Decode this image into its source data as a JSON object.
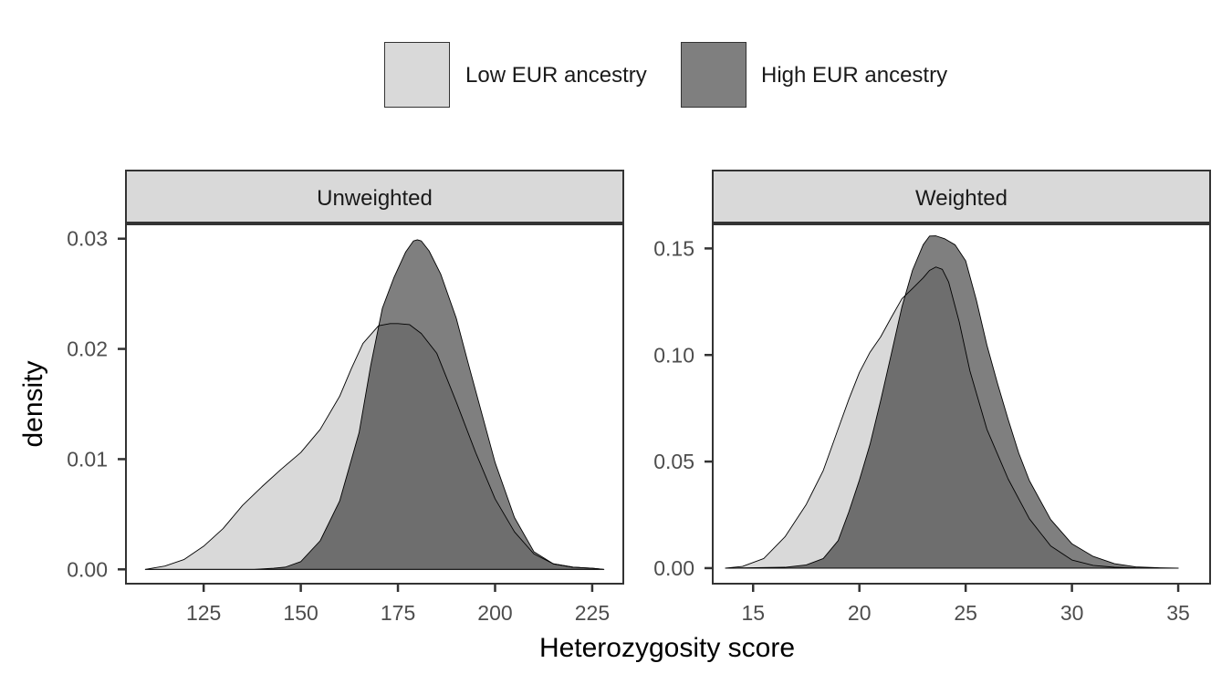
{
  "chart_data": {
    "type": "area",
    "xlabel": "Heterozygosity score",
    "ylabel": "density",
    "legend": {
      "position": "top",
      "entries": [
        {
          "name": "Low EUR ancestry",
          "color": "#d9d9d9"
        },
        {
          "name": "High EUR ancestry",
          "color": "#7f7f7f"
        }
      ]
    },
    "overlap_color": "#6e6e6e",
    "grid": false,
    "panels": [
      {
        "title": "Unweighted",
        "xlim": [
          105,
          233
        ],
        "ylim": [
          -0.0013,
          0.0313
        ],
        "xticks": [
          125,
          150,
          175,
          200,
          225
        ],
        "xtick_labels": [
          "125",
          "150",
          "175",
          "200",
          "225"
        ],
        "yticks": [
          0,
          0.01,
          0.02,
          0.03
        ],
        "ytick_labels": [
          "0.00",
          "0.01",
          "0.02",
          "0.03"
        ],
        "series": [
          {
            "name": "Low EUR ancestry",
            "x": [
              110,
              115,
              120,
              125,
              130,
              135,
              140,
              145,
              150,
              155,
              160,
              163,
              166,
              170,
              173,
              175,
              178,
              181,
              185,
              190,
              195,
              200,
              205,
              210,
              215,
              220,
              225,
              228
            ],
            "y": [
              0,
              0.0003,
              0.0009,
              0.0021,
              0.0037,
              0.0058,
              0.0075,
              0.0091,
              0.0106,
              0.0127,
              0.0157,
              0.0182,
              0.0205,
              0.0221,
              0.0223,
              0.0223,
              0.0222,
              0.0214,
              0.0196,
              0.0152,
              0.0106,
              0.0064,
              0.0034,
              0.0014,
              0.0005,
              0.0002,
              0.0001,
              0
            ]
          },
          {
            "name": "High EUR ancestry",
            "x": [
              110,
              130,
              138,
              143,
              146,
              150,
              155,
              160,
              165,
              168,
              171,
              174,
              177,
              179,
              180,
              181,
              183,
              186,
              190,
              193,
              195,
              200,
              205,
              210,
              215,
              220,
              225,
              228
            ],
            "y": [
              0,
              0,
              0,
              0.0001,
              0.0002,
              0.0007,
              0.0026,
              0.0062,
              0.0124,
              0.0185,
              0.0237,
              0.0265,
              0.0288,
              0.0298,
              0.0299,
              0.0298,
              0.0289,
              0.0268,
              0.0228,
              0.0188,
              0.0162,
              0.0097,
              0.0047,
              0.0016,
              0.0005,
              0.0002,
              0.0001,
              0
            ]
          }
        ]
      },
      {
        "title": "Weighted",
        "xlim": [
          13.1,
          36.5
        ],
        "ylim": [
          -0.0073,
          0.1613
        ],
        "xticks": [
          15,
          20,
          25,
          30,
          35
        ],
        "xtick_labels": [
          "15",
          "20",
          "25",
          "30",
          "35"
        ],
        "yticks": [
          0,
          0.05,
          0.1,
          0.15
        ],
        "ytick_labels": [
          "0.00",
          "0.05",
          "0.10",
          "0.15"
        ],
        "series": [
          {
            "name": "Low EUR ancestry",
            "x": [
              13.7,
              14.5,
              15.5,
              16.5,
              17.5,
              18.3,
              19,
              19.5,
              20,
              20.5,
              21,
              21.5,
              22,
              22.5,
              23,
              23.3,
              23.6,
              23.9,
              24.2,
              24.7,
              25.2,
              26,
              27,
              28,
              29,
              30,
              31,
              32,
              33,
              34,
              35
            ],
            "y": [
              0,
              0.0008,
              0.0045,
              0.0147,
              0.0299,
              0.0458,
              0.0653,
              0.0791,
              0.0918,
              0.1013,
              0.1085,
              0.1176,
              0.1264,
              0.1312,
              0.1362,
              0.1397,
              0.1413,
              0.1402,
              0.1342,
              0.1154,
              0.0925,
              0.0651,
              0.0418,
              0.0231,
              0.0104,
              0.0038,
              0.0013,
              0.0004,
              0.0001,
              0,
              0
            ]
          },
          {
            "name": "High EUR ancestry",
            "x": [
              13.7,
              16.5,
              17.5,
              18.3,
              19,
              19.5,
              20,
              20.5,
              21,
              21.5,
              22,
              22.5,
              23,
              23.3,
              23.6,
              24,
              24.5,
              25,
              25.5,
              26,
              26.5,
              27,
              27.5,
              28,
              29,
              30,
              31,
              32,
              33,
              34,
              35
            ],
            "y": [
              0,
              0.0004,
              0.0015,
              0.0045,
              0.0129,
              0.0263,
              0.0413,
              0.0581,
              0.0786,
              0.1004,
              0.1225,
              0.1398,
              0.1517,
              0.1558,
              0.1559,
              0.1546,
              0.1517,
              0.1442,
              0.1259,
              0.1046,
              0.0866,
              0.0697,
              0.0539,
              0.041,
              0.0228,
              0.0114,
              0.0055,
              0.0021,
              0.0006,
              0.0002,
              0
            ]
          }
        ]
      }
    ]
  }
}
